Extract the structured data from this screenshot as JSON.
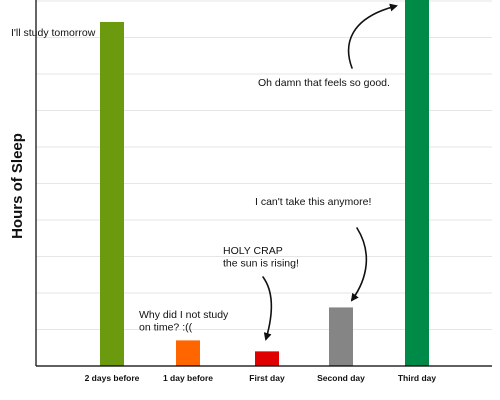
{
  "chart_data": {
    "type": "bar",
    "ylabel": "Hours of Sleep",
    "xlabel": "",
    "categories": [
      "2 days before",
      "1 day before",
      "First day",
      "Second day",
      "Third day"
    ],
    "values": [
      9.4,
      0.7,
      0.4,
      1.6,
      10.5
    ],
    "colors": [
      "#6c9a0f",
      "#ff6600",
      "#e00000",
      "#858585",
      "#008a47"
    ],
    "ylim": [
      0,
      10
    ],
    "grid": true,
    "annotations": [
      {
        "id": "study-tomorrow",
        "text": [
          "I'll study tomorrow"
        ],
        "arrow": false
      },
      {
        "id": "why-not-study",
        "text": [
          "Why did I not study",
          "on time? :(("
        ],
        "arrow": false
      },
      {
        "id": "holy-crap",
        "text": [
          "HOLY CRAP",
          "the sun is rising!"
        ],
        "arrow": true
      },
      {
        "id": "cant-take",
        "text": [
          "I can't take this anymore!"
        ],
        "arrow": true
      },
      {
        "id": "feels-good",
        "text": [
          "Oh damn that feels so good."
        ],
        "arrow": true
      }
    ]
  }
}
